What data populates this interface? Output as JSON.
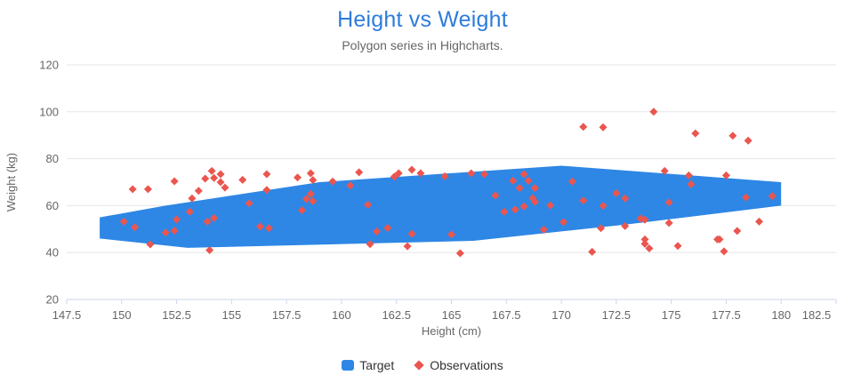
{
  "chart": {
    "title": "Height vs Weight",
    "subtitle": "Polygon series in Highcharts."
  },
  "legend": {
    "target_label": "Target",
    "observations_label": "Observations"
  },
  "colors": {
    "title": "#2E7CDB",
    "subtitle": "#666666",
    "target": "#2E87E5",
    "observations": "#EA564F",
    "grid": "#E6E6E6",
    "axis_line": "#CCD6EB",
    "tick_label": "#666666",
    "axis_title": "#666666",
    "legend_text": "#333333",
    "background": "#FFFFFF"
  },
  "chart_data": {
    "type": "scatter",
    "title": "Height vs Weight",
    "subtitle": "Polygon series in Highcharts.",
    "xlabel": "Height (cm)",
    "ylabel": "Weight (kg)",
    "xlim": [
      147.5,
      182.5
    ],
    "ylim": [
      20,
      120
    ],
    "x_ticks": [
      147.5,
      150,
      152.5,
      155,
      157.5,
      160,
      162.5,
      165,
      167.5,
      170,
      172.5,
      175,
      177.5,
      180,
      182.5
    ],
    "y_ticks": [
      20,
      40,
      60,
      80,
      100,
      120
    ],
    "grid": "horizontal-only",
    "legend_position": "bottom-center",
    "series": [
      {
        "name": "Target",
        "type": "polygon",
        "points": [
          [
            153,
            42
          ],
          [
            149,
            46
          ],
          [
            149,
            55
          ],
          [
            152,
            60
          ],
          [
            159,
            70
          ],
          [
            170,
            77
          ],
          [
            180,
            70
          ],
          [
            180,
            60
          ],
          [
            173,
            52
          ],
          [
            166,
            45
          ]
        ]
      },
      {
        "name": "Observations",
        "type": "scatter",
        "marker": "diamond",
        "points": [
          [
            150.1,
            53.2
          ],
          [
            150.5,
            67.0
          ],
          [
            150.6,
            50.8
          ],
          [
            151.2,
            67.0
          ],
          [
            151.3,
            43.5
          ],
          [
            152.0,
            48.5
          ],
          [
            152.4,
            49.3
          ],
          [
            152.4,
            70.4
          ],
          [
            152.5,
            54.1
          ],
          [
            153.1,
            57.4
          ],
          [
            153.2,
            63.1
          ],
          [
            153.5,
            66.3
          ],
          [
            153.8,
            71.5
          ],
          [
            153.9,
            53.2
          ],
          [
            154.0,
            41.0
          ],
          [
            154.1,
            74.8
          ],
          [
            154.2,
            54.7
          ],
          [
            154.2,
            71.8
          ],
          [
            154.5,
            73.4
          ],
          [
            154.5,
            70.0
          ],
          [
            154.7,
            67.7
          ],
          [
            155.5,
            71.0
          ],
          [
            155.8,
            61.0
          ],
          [
            156.3,
            51.1
          ],
          [
            156.6,
            73.4
          ],
          [
            156.6,
            66.7
          ],
          [
            156.7,
            50.4
          ],
          [
            158.0,
            72.0
          ],
          [
            158.2,
            58.0
          ],
          [
            158.4,
            62.8
          ],
          [
            158.6,
            65.0
          ],
          [
            158.7,
            61.9
          ],
          [
            158.6,
            73.8
          ],
          [
            158.7,
            70.9
          ],
          [
            159.6,
            70.3
          ],
          [
            160.4,
            68.6
          ],
          [
            160.8,
            74.2
          ],
          [
            161.2,
            60.4
          ],
          [
            161.3,
            43.6
          ],
          [
            161.6,
            49.0
          ],
          [
            162.1,
            50.5
          ],
          [
            162.4,
            72.3
          ],
          [
            162.6,
            73.8
          ],
          [
            163.0,
            42.7
          ],
          [
            163.2,
            48.0
          ],
          [
            163.2,
            75.3
          ],
          [
            163.6,
            73.8
          ],
          [
            164.7,
            72.5
          ],
          [
            165.0,
            47.7
          ],
          [
            165.4,
            39.7
          ],
          [
            165.9,
            73.8
          ],
          [
            166.5,
            73.4
          ],
          [
            167.0,
            64.3
          ],
          [
            167.4,
            57.4
          ],
          [
            167.8,
            70.6
          ],
          [
            167.9,
            58.3
          ],
          [
            168.1,
            67.5
          ],
          [
            168.3,
            59.7
          ],
          [
            168.3,
            73.4
          ],
          [
            168.5,
            70.6
          ],
          [
            168.7,
            63.2
          ],
          [
            168.8,
            61.6
          ],
          [
            168.8,
            67.5
          ],
          [
            169.2,
            49.8
          ],
          [
            169.5,
            60.1
          ],
          [
            170.1,
            53.0
          ],
          [
            170.5,
            70.3
          ],
          [
            171.0,
            62.2
          ],
          [
            171.0,
            93.6
          ],
          [
            171.4,
            40.3
          ],
          [
            171.8,
            50.4
          ],
          [
            171.9,
            59.9
          ],
          [
            171.9,
            93.4
          ],
          [
            172.5,
            65.3
          ],
          [
            172.9,
            51.3
          ],
          [
            172.9,
            63.1
          ],
          [
            173.6,
            54.5
          ],
          [
            173.8,
            54.0
          ],
          [
            173.8,
            45.6
          ],
          [
            173.8,
            43.7
          ],
          [
            174.0,
            41.8
          ],
          [
            174.2,
            100
          ],
          [
            174.7,
            74.8
          ],
          [
            174.9,
            52.6
          ],
          [
            174.9,
            61.4
          ],
          [
            175.3,
            42.8
          ],
          [
            175.8,
            72.9
          ],
          [
            175.9,
            69.1
          ],
          [
            176.1,
            90.8
          ],
          [
            177.1,
            45.6
          ],
          [
            177.2,
            45.6
          ],
          [
            177.4,
            40.5
          ],
          [
            177.5,
            72.9
          ],
          [
            177.8,
            89.8
          ],
          [
            178.0,
            49.2
          ],
          [
            178.4,
            63.5
          ],
          [
            178.5,
            87.7
          ],
          [
            179.0,
            53.2
          ],
          [
            179.6,
            64.1
          ]
        ]
      }
    ]
  }
}
